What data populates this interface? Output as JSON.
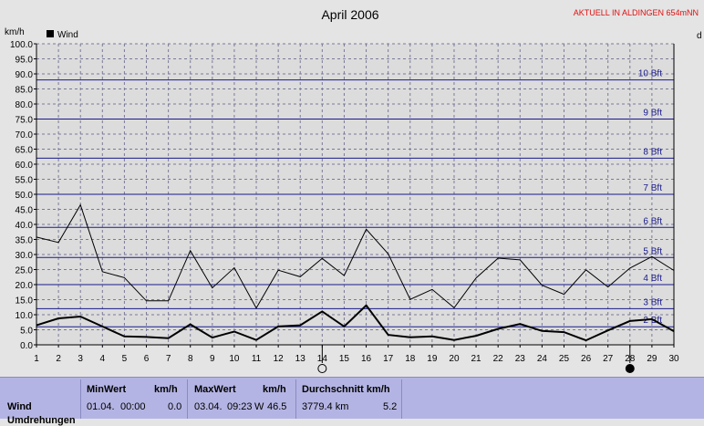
{
  "chart_data": {
    "type": "line",
    "title": "April 2006",
    "station_label": "AKTUELL IN ALDINGEN 654mNN",
    "ylabel": "km/h",
    "right_axis_label": "d",
    "ylim": [
      0,
      100
    ],
    "y_ticks": [
      "0.0",
      "5.0",
      "10.0",
      "15.0",
      "20.0",
      "25.0",
      "30.0",
      "35.0",
      "40.0",
      "45.0",
      "50.0",
      "55.0",
      "60.0",
      "65.0",
      "70.0",
      "75.0",
      "80.0",
      "85.0",
      "90.0",
      "95.0",
      "100.0"
    ],
    "x": [
      1,
      2,
      3,
      4,
      5,
      6,
      7,
      8,
      9,
      10,
      11,
      12,
      13,
      14,
      15,
      16,
      17,
      18,
      19,
      20,
      21,
      22,
      23,
      24,
      25,
      26,
      27,
      28,
      29,
      30
    ],
    "legend": [
      "Wind"
    ],
    "beaufort": [
      {
        "label": "2 Bft",
        "kmh": 6
      },
      {
        "label": "3 Bft",
        "kmh": 12
      },
      {
        "label": "4 Bft",
        "kmh": 20
      },
      {
        "label": "5 Bft",
        "kmh": 29
      },
      {
        "label": "6 Bft",
        "kmh": 39
      },
      {
        "label": "7 Bft",
        "kmh": 50
      },
      {
        "label": "8 Bft",
        "kmh": 62
      },
      {
        "label": "9 Bft",
        "kmh": 75
      },
      {
        "label": "10 Bft",
        "kmh": 88
      }
    ],
    "series": [
      {
        "name": "Wind",
        "kind": "max",
        "values": [
          35.8,
          34,
          46.5,
          24.3,
          22.3,
          14.6,
          14.6,
          31.3,
          18.9,
          25.6,
          12.2,
          24.8,
          22.6,
          28.7,
          23,
          38.4,
          30.2,
          15.1,
          18.4,
          12.3,
          22.2,
          28.8,
          28.2,
          19.8,
          16.8,
          24.9,
          19.2,
          25.5,
          29.3,
          24.7
        ]
      },
      {
        "name": "Wind",
        "kind": "avg",
        "values": [
          6.5,
          8.8,
          9.4,
          6.1,
          2.8,
          2.6,
          2.2,
          6.8,
          2.4,
          4.4,
          1.6,
          6.1,
          6.5,
          11.1,
          6.1,
          13.1,
          3.3,
          2.5,
          2.8,
          1.6,
          3,
          5.3,
          6.9,
          4.6,
          4.2,
          1.5,
          4.8,
          7.9,
          8.5,
          4.5
        ]
      }
    ],
    "moon_markers": [
      {
        "day": 14,
        "phase": "full"
      },
      {
        "day": 28,
        "phase": "new"
      }
    ],
    "colors": {
      "grid": "#7a7a9a",
      "bft": "#1a1a8c",
      "title_red": "#e01010",
      "line": "#000000"
    }
  },
  "stats": {
    "row_label": "Wind",
    "row_label_2": "Umdrehungen",
    "min": {
      "header": "MinWert",
      "unit": "km/h",
      "date": "01.04.",
      "time": "00:00",
      "value": "0.0"
    },
    "max": {
      "header": "MaxWert",
      "unit": "km/h",
      "date": "03.04.",
      "time": "09:23",
      "dir": "W",
      "value": "46.5"
    },
    "avg": {
      "header": "Durchschnitt km/h",
      "distance": "3779.4 km",
      "value": "5.2"
    }
  }
}
